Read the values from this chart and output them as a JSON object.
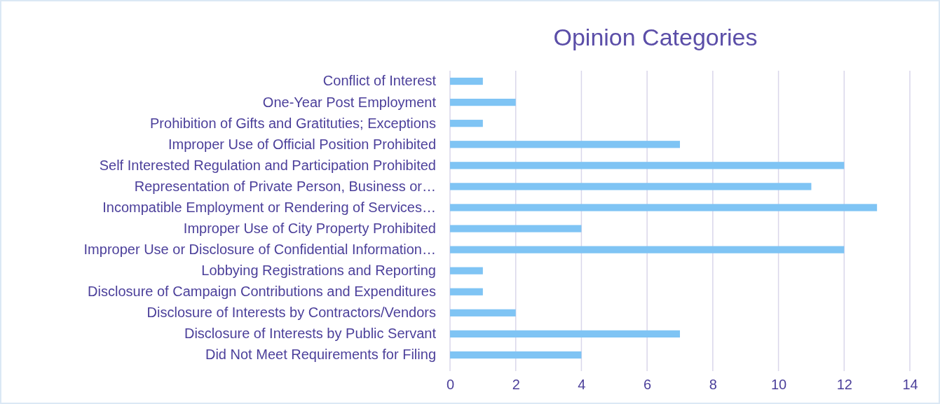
{
  "chart_data": {
    "type": "bar",
    "orientation": "horizontal",
    "title": "Opinion Categories",
    "categories": [
      "Conflict of Interest",
      "One-Year Post Employment",
      "Prohibition of Gifts and Gratituties; Exceptions",
      "Improper Use of Official Position Prohibited",
      "Self Interested Regulation and Participation Prohibited",
      "Representation of Private Person, Business or…",
      "Incompatible Employment or Rendering of Services…",
      "Improper Use of City Property Prohibited",
      "Improper Use or Disclosure of Confidential Information…",
      "Lobbying Registrations and Reporting",
      "Disclosure of Campaign Contributions and Expenditures",
      "Disclosure of Interests by Contractors/Vendors",
      "Disclosure of Interests by Public Servant",
      "Did Not Meet Requirements for Filing"
    ],
    "values": [
      1,
      2,
      1,
      7,
      12,
      11,
      13,
      4,
      12,
      1,
      1,
      2,
      7,
      4
    ],
    "color": "#7fc4f4",
    "xlim": [
      0,
      14
    ],
    "xticks": [
      0,
      2,
      4,
      6,
      8,
      10,
      12,
      14
    ],
    "grid": "x"
  }
}
